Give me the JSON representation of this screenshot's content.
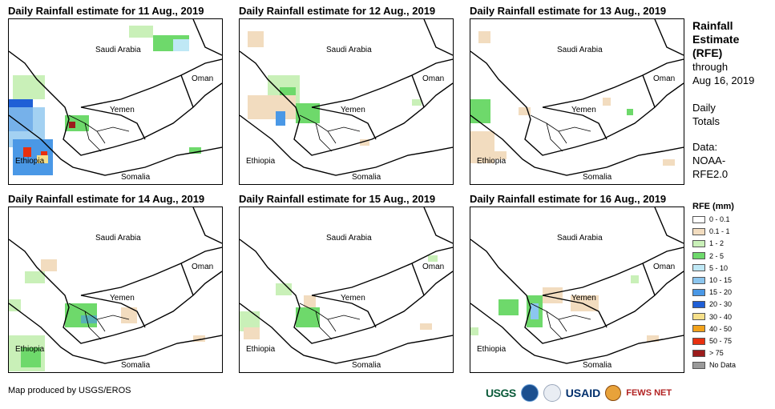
{
  "panels": [
    {
      "title": "Daily Rainfall estimate for 11 Aug., 2019"
    },
    {
      "title": "Daily Rainfall estimate for 12 Aug., 2019"
    },
    {
      "title": "Daily Rainfall estimate for 13 Aug., 2019"
    },
    {
      "title": "Daily Rainfall estimate for 14 Aug., 2019"
    },
    {
      "title": "Daily Rainfall estimate for 15 Aug., 2019"
    },
    {
      "title": "Daily Rainfall estimate for 16 Aug., 2019"
    }
  ],
  "map_labels": {
    "saudi": "Saudi Arabia",
    "oman": "Oman",
    "yemen": "Yemen",
    "ethiopia": "Ethiopia",
    "somalia": "Somalia"
  },
  "side": {
    "title_line1": "Rainfall",
    "title_line2": "Estimate",
    "title_line3": "(RFE)",
    "through": "through",
    "date": "Aug 16, 2019",
    "daily": "Daily",
    "totals": "Totals",
    "data_label": "Data:",
    "source1": "NOAA-",
    "source2": "RFE2.0"
  },
  "legend": {
    "title": "RFE (mm)",
    "items": [
      {
        "label": "0 - 0.1",
        "color": "#ffffff"
      },
      {
        "label": "0.1 - 1",
        "color": "#f2dcbf"
      },
      {
        "label": "1 - 2",
        "color": "#c9f0b8"
      },
      {
        "label": "2 - 5",
        "color": "#6ed96b"
      },
      {
        "label": "5 - 10",
        "color": "#bfe8f5"
      },
      {
        "label": "10 - 15",
        "color": "#8cc6ef"
      },
      {
        "label": "15 - 20",
        "color": "#4a98e6"
      },
      {
        "label": "20 - 30",
        "color": "#1f5fd6"
      },
      {
        "label": "30 - 40",
        "color": "#f6e08a"
      },
      {
        "label": "40 - 50",
        "color": "#f2a21b"
      },
      {
        "label": "50 - 75",
        "color": "#e8300f"
      },
      {
        "label": "> 75",
        "color": "#9c1c1c"
      },
      {
        "label": "No Data",
        "color": "#9a9a9a"
      }
    ]
  },
  "credit": "Map produced by USGS/EROS",
  "logos": {
    "usgs": "USGS",
    "usaid": "USAID",
    "fews": "FEWS NET"
  }
}
